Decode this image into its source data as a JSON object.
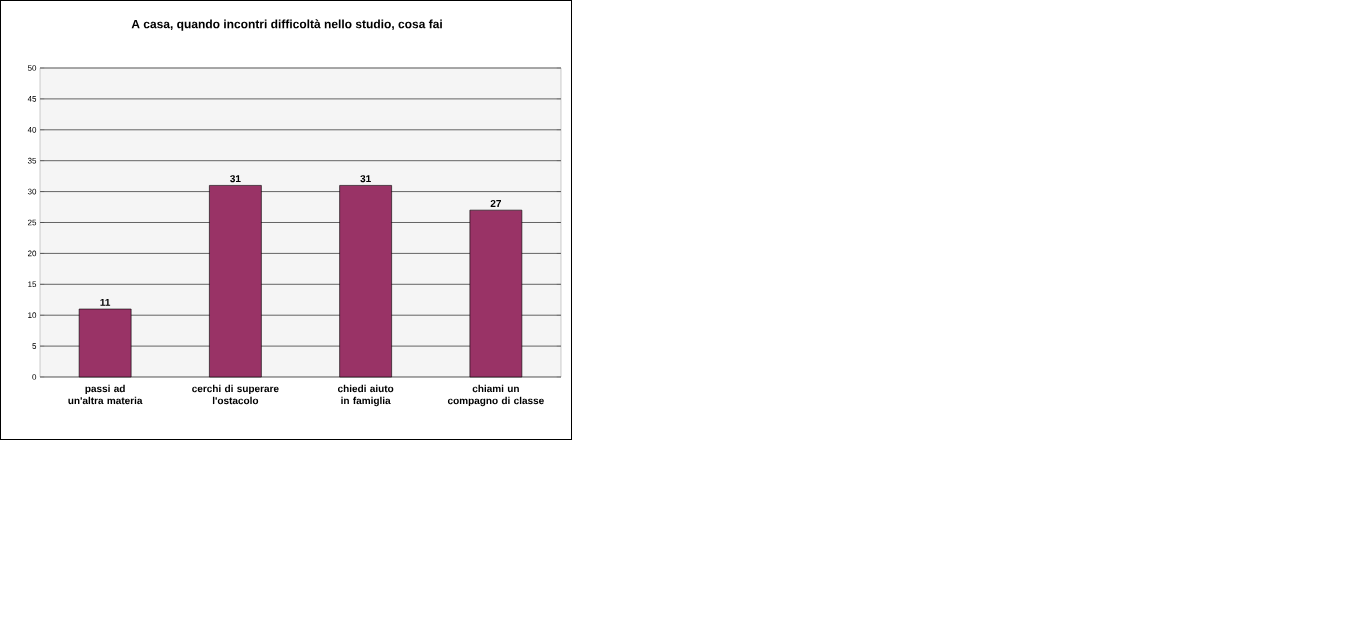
{
  "chart_data": {
    "type": "bar",
    "title": "A casa, quando incontri difficoltà nello studio, cosa fai",
    "categories": [
      "passi ad un'altra materia",
      "cerchi di superare l'ostacolo",
      "chiedi aiuto in famiglia",
      "chiami un compagno di classe"
    ],
    "values": [
      11,
      31,
      31,
      27
    ],
    "color": "#993366",
    "ylim": [
      0,
      50
    ],
    "yticks": [
      0,
      5,
      10,
      15,
      20,
      25,
      30,
      35,
      40,
      45,
      50
    ],
    "grid": "y",
    "data_labels": true
  }
}
